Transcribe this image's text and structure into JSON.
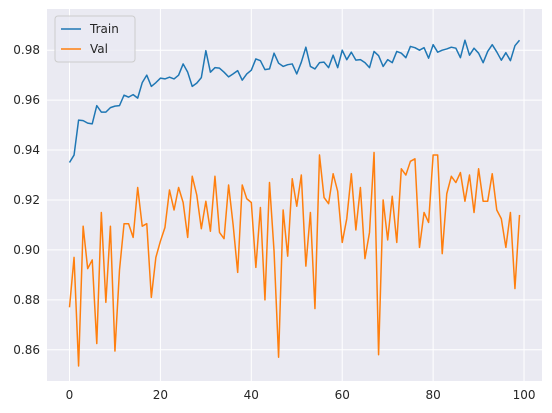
{
  "chart_data": {
    "type": "line",
    "title": "",
    "xlabel": "",
    "ylabel": "",
    "xlim": [
      -4.95,
      103.95
    ],
    "ylim": [
      0.8475,
      0.9965
    ],
    "xticks": [
      0,
      20,
      40,
      60,
      80,
      100
    ],
    "yticks": [
      0.86,
      0.88,
      0.9,
      0.92,
      0.94,
      0.96,
      0.98
    ],
    "grid": true,
    "legend_position": "top-left",
    "x": [
      0,
      1,
      2,
      3,
      4,
      5,
      6,
      7,
      8,
      9,
      10,
      11,
      12,
      13,
      14,
      15,
      16,
      17,
      18,
      19,
      20,
      21,
      22,
      23,
      24,
      25,
      26,
      27,
      28,
      29,
      30,
      31,
      32,
      33,
      34,
      35,
      36,
      37,
      38,
      39,
      40,
      41,
      42,
      43,
      44,
      45,
      46,
      47,
      48,
      49,
      50,
      51,
      52,
      53,
      54,
      55,
      56,
      57,
      58,
      59,
      60,
      61,
      62,
      63,
      64,
      65,
      66,
      67,
      68,
      69,
      70,
      71,
      72,
      73,
      74,
      75,
      76,
      77,
      78,
      79,
      80,
      81,
      82,
      83,
      84,
      85,
      86,
      87,
      88,
      89,
      90,
      91,
      92,
      93,
      94,
      95,
      96,
      97,
      98,
      99
    ],
    "series": [
      {
        "name": "Train",
        "color": "#1f77b4",
        "values": [
          0.935,
          0.938,
          0.952,
          0.9518,
          0.9508,
          0.9505,
          0.9578,
          0.9552,
          0.9552,
          0.957,
          0.9576,
          0.9578,
          0.962,
          0.9612,
          0.9622,
          0.9608,
          0.967,
          0.97,
          0.9655,
          0.967,
          0.9688,
          0.9685,
          0.9692,
          0.9685,
          0.97,
          0.9745,
          0.9712,
          0.9655,
          0.9668,
          0.969,
          0.9798,
          0.9712,
          0.973,
          0.9728,
          0.9712,
          0.9693,
          0.9705,
          0.9718,
          0.968,
          0.9705,
          0.972,
          0.9765,
          0.9758,
          0.9722,
          0.9725,
          0.9788,
          0.9748,
          0.9735,
          0.9742,
          0.9745,
          0.9705,
          0.9752,
          0.9812,
          0.9735,
          0.9725,
          0.975,
          0.9752,
          0.973,
          0.978,
          0.973,
          0.98,
          0.9762,
          0.9792,
          0.976,
          0.9762,
          0.975,
          0.973,
          0.9795,
          0.9778,
          0.9735,
          0.9762,
          0.975,
          0.9795,
          0.9788,
          0.977,
          0.9815,
          0.981,
          0.98,
          0.981,
          0.9768,
          0.9822,
          0.9792,
          0.98,
          0.9805,
          0.9812,
          0.9808,
          0.977,
          0.984,
          0.978,
          0.9808,
          0.9788,
          0.975,
          0.9795,
          0.9822,
          0.9793,
          0.976,
          0.979,
          0.9758,
          0.9818,
          0.984
        ]
      },
      {
        "name": "Val",
        "color": "#ff7f0e",
        "values": [
          0.877,
          0.897,
          0.8535,
          0.9095,
          0.8925,
          0.896,
          0.8625,
          0.915,
          0.879,
          0.9095,
          0.8595,
          0.892,
          0.9105,
          0.9105,
          0.905,
          0.925,
          0.9095,
          0.9105,
          0.881,
          0.897,
          0.9035,
          0.909,
          0.924,
          0.916,
          0.925,
          0.919,
          0.905,
          0.9295,
          0.922,
          0.9085,
          0.9195,
          0.9075,
          0.9295,
          0.907,
          0.9045,
          0.926,
          0.91,
          0.891,
          0.926,
          0.9205,
          0.919,
          0.893,
          0.917,
          0.88,
          0.927,
          0.8995,
          0.857,
          0.916,
          0.8975,
          0.9285,
          0.9175,
          0.93,
          0.8935,
          0.915,
          0.8765,
          0.938,
          0.921,
          0.9185,
          0.9305,
          0.9235,
          0.903,
          0.9125,
          0.9305,
          0.908,
          0.925,
          0.8965,
          0.907,
          0.939,
          0.858,
          0.92,
          0.904,
          0.9215,
          0.903,
          0.9325,
          0.93,
          0.9355,
          0.9365,
          0.901,
          0.915,
          0.911,
          0.938,
          0.938,
          0.8985,
          0.9225,
          0.9295,
          0.927,
          0.931,
          0.9195,
          0.93,
          0.915,
          0.9325,
          0.9195,
          0.9195,
          0.9305,
          0.916,
          0.9125,
          0.901,
          0.915,
          0.8845,
          0.914
        ]
      }
    ]
  }
}
